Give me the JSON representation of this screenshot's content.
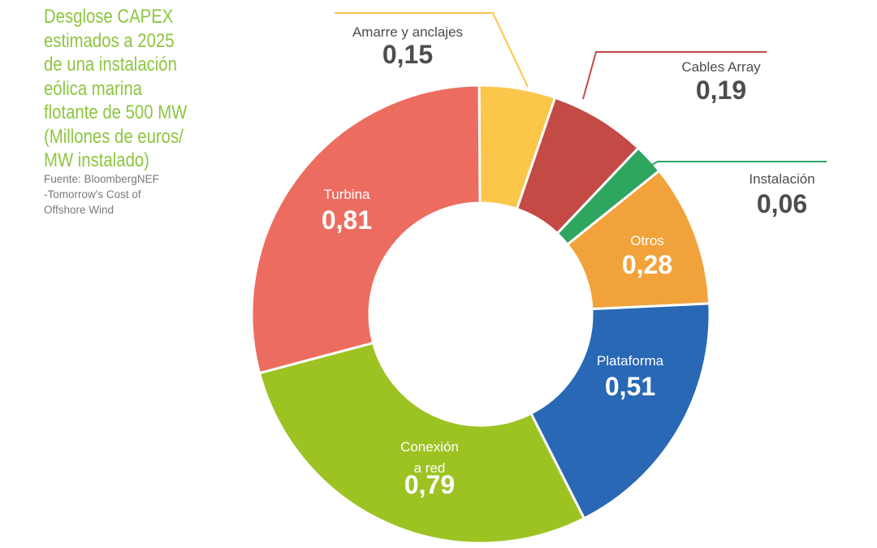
{
  "title_lines": [
    "Desglose CAPEX",
    "estimados a 2025",
    "de una instalación",
    "eólica marina",
    "flotante de 500 MW",
    "(Millones de euros/",
    "MW instalado)"
  ],
  "source_lines": [
    "Fuente: BloombergNEF",
    "-Tomorrow's Cost of",
    "Offshore Wind"
  ],
  "chart_data": {
    "type": "pie",
    "style": "donut",
    "slices": [
      {
        "label_lines": [
          "Amarre y anclajes"
        ],
        "value_text": "0,15",
        "value": 0.15,
        "color": "#fbc64a",
        "text_color": "#4d4d4d",
        "callout": true,
        "callout_color": "#fbc64a"
      },
      {
        "label_lines": [
          "Cables Array"
        ],
        "value_text": "0,19",
        "value": 0.19,
        "color": "#c44a45",
        "text_color": "#4d4d4d",
        "callout": true,
        "callout_color": "#c44a45"
      },
      {
        "label_lines": [
          "Instalación"
        ],
        "value_text": "0,06",
        "value": 0.06,
        "color": "#2fa660",
        "text_color": "#4d4d4d",
        "callout": true,
        "callout_color": "#2fa660"
      },
      {
        "label_lines": [
          "Otros"
        ],
        "value_text": "0,28",
        "value": 0.28,
        "color": "#f2a23a",
        "text_color": "#ffffff",
        "callout": false
      },
      {
        "label_lines": [
          "Plataforma"
        ],
        "value_text": "0,51",
        "value": 0.51,
        "color": "#2868b4",
        "text_color": "#ffffff",
        "callout": false
      },
      {
        "label_lines": [
          "Conexión",
          "a red"
        ],
        "value_text": "0,79",
        "value": 0.79,
        "color": "#9dc323",
        "text_color": "#ffffff",
        "callout": false
      },
      {
        "label_lines": [
          "Turbina"
        ],
        "value_text": "0,81",
        "value": 0.81,
        "color": "#ed6c60",
        "text_color": "#ffffff",
        "callout": false
      }
    ]
  }
}
